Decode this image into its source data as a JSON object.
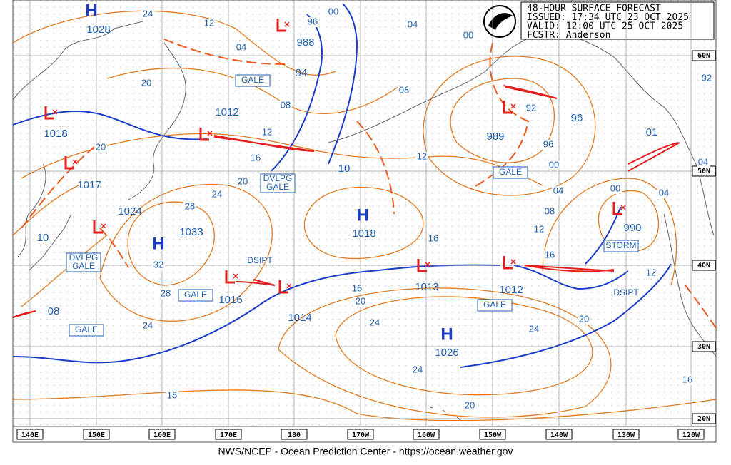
{
  "header": {
    "lines": [
      "48-HOUR SURFACE FORECAST",
      "ISSUED: 17:34 UTC 23 OCT 2025",
      "VALID:  12:00 UTC 25 OCT 2025",
      "FCSTR:  Anderson"
    ]
  },
  "footer": "NWS/NCEP - Ocean Prediction Center - https://ocean.weather.gov",
  "lon_labels": [
    "140E",
    "150E",
    "160E",
    "170E",
    "180",
    "170W",
    "160W",
    "150W",
    "140W",
    "130W",
    "120W"
  ],
  "lat_labels": [
    "60N",
    "50N",
    "40N",
    "30N",
    "20N"
  ],
  "highs": [
    {
      "symbol": "H",
      "pressure": "1028"
    },
    {
      "symbol": "H",
      "pressure": "1033"
    },
    {
      "symbol": "H",
      "pressure": "1018"
    },
    {
      "symbol": "H",
      "pressure": "1026"
    }
  ],
  "lows": [
    "988",
    "94",
    "1012",
    "1018",
    "1017",
    "1024",
    "10",
    "08",
    "1016",
    "1014",
    "1013",
    "1012",
    "989",
    "96",
    "01",
    "990",
    "10"
  ],
  "isobar_labels": [
    "24",
    "12",
    "04",
    "96",
    "00",
    "04",
    "00",
    "20",
    "08",
    "12",
    "16",
    "20",
    "24",
    "28",
    "32",
    "28",
    "24",
    "16",
    "20",
    "08",
    "12",
    "16",
    "16",
    "20",
    "24",
    "24",
    "20",
    "24",
    "20",
    "16",
    "12",
    "08",
    "04",
    "00",
    "96",
    "92",
    "00",
    "04",
    "04",
    "92",
    "12",
    "16"
  ],
  "warnings": [
    "GALE",
    "DVLPG GALE",
    "GALE",
    "STORM",
    "DVLPG GALE",
    "GALE",
    "GALE",
    "GALE"
  ],
  "notes": [
    "DSIPT",
    "DSIPT"
  ]
}
